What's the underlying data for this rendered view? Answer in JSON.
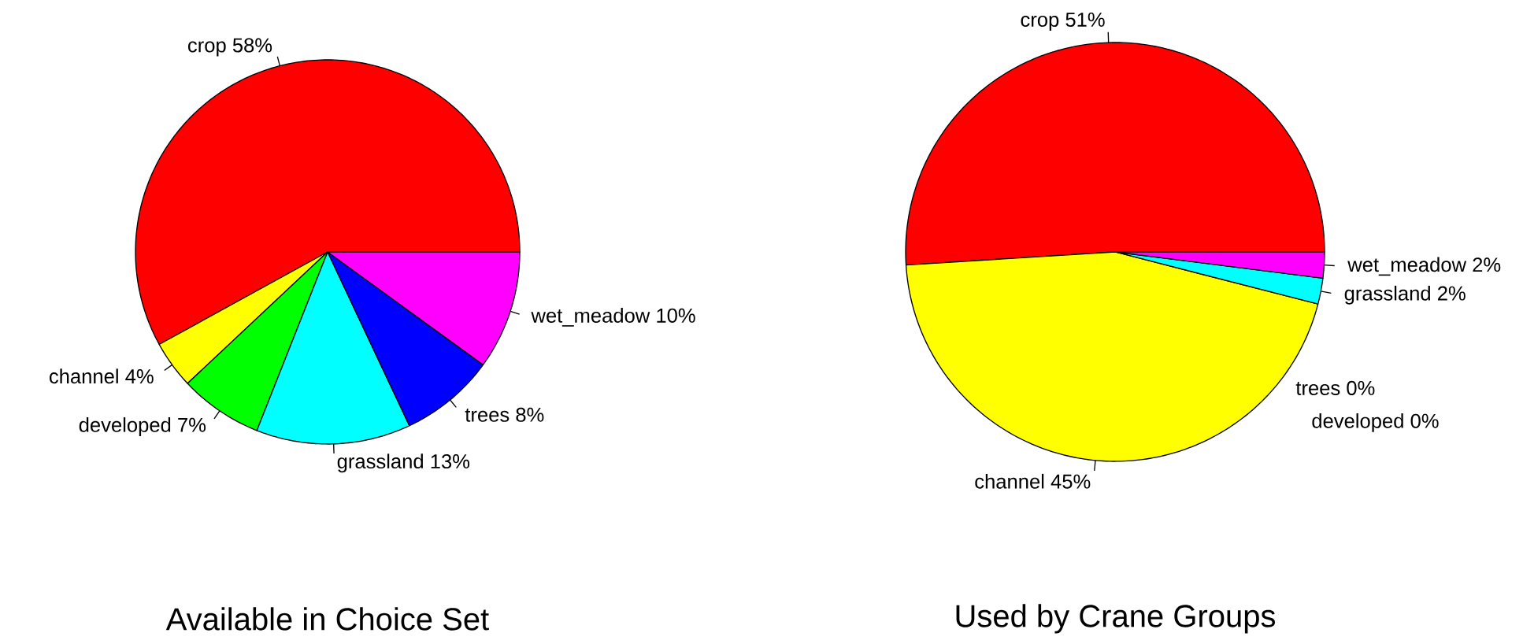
{
  "chart_data": [
    {
      "type": "pie",
      "title": "Available in Choice Set",
      "categories": [
        "crop",
        "channel",
        "developed",
        "grassland",
        "trees",
        "wet_meadow"
      ],
      "values": [
        58,
        4,
        7,
        13,
        8,
        10
      ],
      "value_labels": [
        "58%",
        "4%",
        "7%",
        "13%",
        "8%",
        "10%"
      ],
      "colors": [
        "#ff0000",
        "#ffff00",
        "#00ff00",
        "#00ffff",
        "#0000ff",
        "#ff00ff"
      ]
    },
    {
      "type": "pie",
      "title": "Used by Crane Groups",
      "categories": [
        "crop",
        "channel",
        "developed",
        "grassland",
        "trees",
        "wet_meadow"
      ],
      "values": [
        51,
        45,
        0,
        2,
        0,
        2
      ],
      "value_labels": [
        "51%",
        "45%",
        "0%",
        "2%",
        "0%",
        "2%"
      ],
      "colors": [
        "#ff0000",
        "#ffff00",
        "#00ff00",
        "#00ffff",
        "#0000ff",
        "#ff00ff"
      ]
    }
  ]
}
